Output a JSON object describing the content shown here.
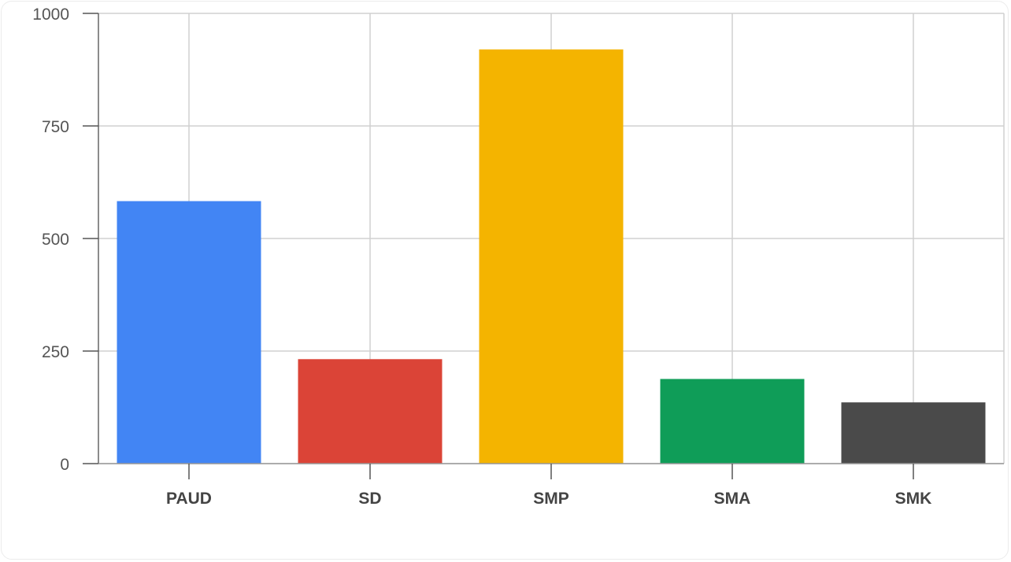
{
  "chart_data": {
    "type": "bar",
    "title": "",
    "xlabel": "",
    "ylabel": "",
    "categories": [
      "PAUD",
      "SD",
      "SMP",
      "SMA",
      "SMK"
    ],
    "values": [
      583,
      232,
      920,
      188,
      136
    ],
    "colors": [
      "#4285f4",
      "#db4437",
      "#f4b400",
      "#0f9d58",
      "#4a4a4a"
    ],
    "ylim": [
      0,
      1000
    ],
    "yticks": [
      0,
      250,
      500,
      750,
      1000
    ],
    "ytick_labels": [
      "0",
      "250",
      "500",
      "750",
      "1000"
    ],
    "grid": true,
    "legend": "none"
  }
}
